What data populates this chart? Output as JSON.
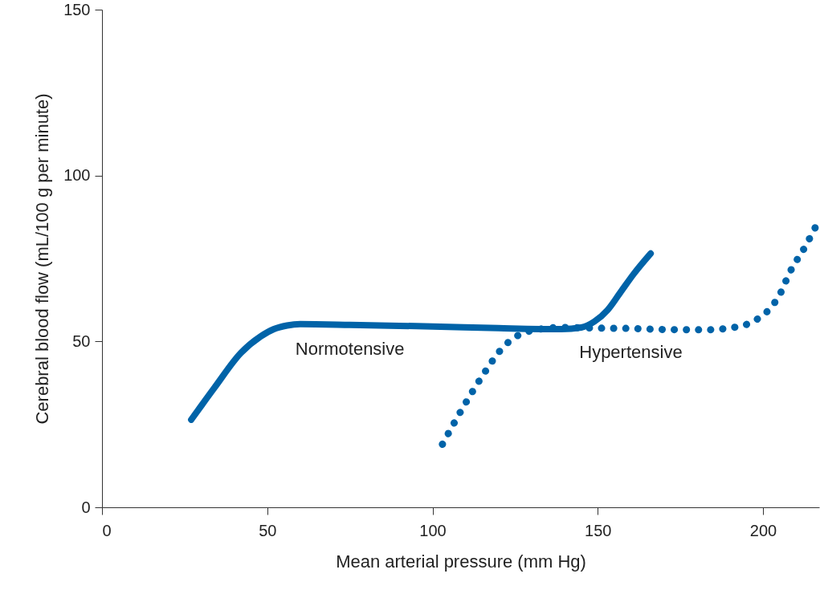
{
  "chart_data": {
    "type": "line",
    "xlabel": "Mean arterial pressure (mm Hg)",
    "ylabel": "Cerebral blood flow (mL/100 g per minute)",
    "xlim": [
      0,
      217
    ],
    "xticks": [
      0,
      50,
      100,
      150,
      200
    ],
    "ylim": [
      0,
      150
    ],
    "yticks": [
      0,
      50,
      100,
      150
    ],
    "grid": false,
    "legend": false,
    "series": [
      {
        "name": "Normotensive",
        "color": "#0063a8",
        "line_style": "solid",
        "x": [
          27,
          34,
          42,
          48,
          52,
          56,
          60,
          75,
          100,
          120,
          139,
          145,
          149,
          153,
          157,
          161,
          166
        ],
        "values": [
          26.4,
          36,
          46.5,
          51.5,
          53.7,
          54.8,
          55.2,
          55,
          54.5,
          54,
          53.7,
          54.2,
          56,
          59.5,
          65,
          70.5,
          76.5
        ]
      },
      {
        "name": "Hypertensive",
        "color": "#0063a8",
        "line_style": "dotted",
        "x": [
          103,
          108.6,
          114.7,
          122,
          129,
          139,
          150,
          160,
          170,
          182.5,
          191,
          197,
          202,
          205,
          208,
          213,
          216
        ],
        "values": [
          19,
          29,
          39,
          48.9,
          53,
          54.2,
          54,
          53.9,
          53.6,
          53.5,
          54.2,
          56,
          59.8,
          64,
          70.6,
          79,
          84.7
        ]
      }
    ]
  }
}
